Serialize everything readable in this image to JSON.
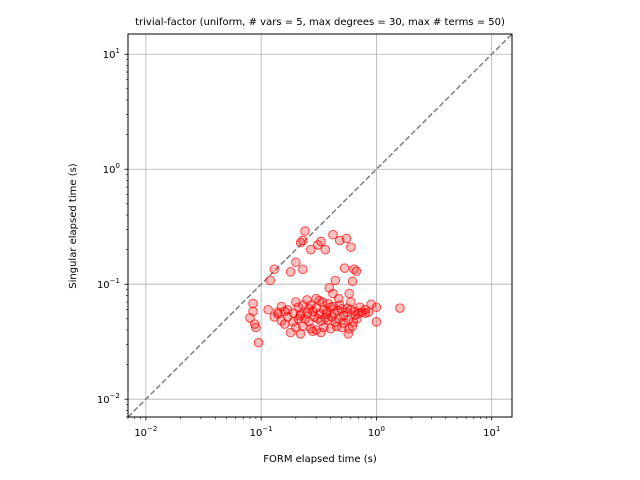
{
  "chart_data": {
    "type": "scatter",
    "title": "trivial-factor (uniform, # vars = 5, max degrees = 30, max # terms = 50)",
    "xlabel": "FORM elapsed time (s)",
    "ylabel": "Singular elapsed time (s)",
    "xscale": "log",
    "yscale": "log",
    "xlim": [
      0.007,
      15
    ],
    "ylim": [
      0.007,
      15
    ],
    "grid": true,
    "x_ticks": [
      {
        "value": 0.01,
        "base": "10",
        "exp": "−2"
      },
      {
        "value": 0.1,
        "base": "10",
        "exp": "−1"
      },
      {
        "value": 1,
        "base": "10",
        "exp": "0"
      },
      {
        "value": 10,
        "base": "10",
        "exp": "1"
      }
    ],
    "y_ticks": [
      {
        "value": 0.01,
        "base": "10",
        "exp": "−2"
      },
      {
        "value": 0.1,
        "base": "10",
        "exp": "−1"
      },
      {
        "value": 1,
        "base": "10",
        "exp": "0"
      },
      {
        "value": 10,
        "base": "10",
        "exp": "1"
      }
    ],
    "reference_line": {
      "style": "dashed",
      "color": "#7f7f7f",
      "relation": "y = x"
    },
    "marker": {
      "shape": "circle",
      "edgecolor": "#ff0000",
      "facecolor": "#ff0000",
      "face_alpha": 0.25
    },
    "points": [
      [
        0.24,
        0.29
      ],
      [
        0.23,
        0.24
      ],
      [
        0.31,
        0.22
      ],
      [
        0.36,
        0.2
      ],
      [
        0.42,
        0.27
      ],
      [
        0.55,
        0.25
      ],
      [
        0.6,
        0.21
      ],
      [
        0.22,
        0.23
      ],
      [
        0.33,
        0.235
      ],
      [
        0.27,
        0.2
      ],
      [
        0.48,
        0.24
      ],
      [
        0.13,
        0.135
      ],
      [
        0.2,
        0.155
      ],
      [
        0.23,
        0.135
      ],
      [
        0.18,
        0.128
      ],
      [
        0.12,
        0.108
      ],
      [
        0.53,
        0.138
      ],
      [
        0.64,
        0.135
      ],
      [
        0.67,
        0.13
      ],
      [
        0.44,
        0.108
      ],
      [
        0.62,
        0.106
      ],
      [
        0.39,
        0.093
      ],
      [
        0.42,
        0.083
      ],
      [
        0.47,
        0.075
      ],
      [
        0.6,
        0.07
      ],
      [
        0.3,
        0.075
      ],
      [
        0.25,
        0.073
      ],
      [
        0.2,
        0.07
      ],
      [
        0.58,
        0.083
      ],
      [
        0.38,
        0.068
      ],
      [
        0.085,
        0.068
      ],
      [
        0.085,
        0.058
      ],
      [
        0.08,
        0.051
      ],
      [
        0.088,
        0.045
      ],
      [
        0.09,
        0.042
      ],
      [
        0.095,
        0.031
      ],
      [
        0.115,
        0.06
      ],
      [
        0.14,
        0.057
      ],
      [
        0.15,
        0.064
      ],
      [
        0.17,
        0.06
      ],
      [
        0.19,
        0.056
      ],
      [
        0.21,
        0.063
      ],
      [
        0.23,
        0.066
      ],
      [
        0.26,
        0.061
      ],
      [
        0.28,
        0.058
      ],
      [
        0.3,
        0.062
      ],
      [
        0.32,
        0.055
      ],
      [
        0.35,
        0.06
      ],
      [
        0.37,
        0.058
      ],
      [
        0.4,
        0.063
      ],
      [
        0.43,
        0.056
      ],
      [
        0.46,
        0.059
      ],
      [
        0.5,
        0.061
      ],
      [
        0.55,
        0.057
      ],
      [
        0.6,
        0.06
      ],
      [
        0.65,
        0.058
      ],
      [
        0.7,
        0.056
      ],
      [
        0.75,
        0.057
      ],
      [
        0.8,
        0.06
      ],
      [
        0.85,
        0.057
      ],
      [
        0.9,
        0.067
      ],
      [
        1.0,
        0.063
      ],
      [
        1.6,
        0.062
      ],
      [
        0.13,
        0.052
      ],
      [
        0.15,
        0.048
      ],
      [
        0.17,
        0.052
      ],
      [
        0.19,
        0.047
      ],
      [
        0.21,
        0.05
      ],
      [
        0.22,
        0.053
      ],
      [
        0.24,
        0.05
      ],
      [
        0.26,
        0.047
      ],
      [
        0.29,
        0.052
      ],
      [
        0.31,
        0.05
      ],
      [
        0.33,
        0.048
      ],
      [
        0.36,
        0.051
      ],
      [
        0.38,
        0.049
      ],
      [
        0.41,
        0.052
      ],
      [
        0.44,
        0.047
      ],
      [
        0.47,
        0.05
      ],
      [
        0.52,
        0.046
      ],
      [
        0.57,
        0.049
      ],
      [
        0.63,
        0.047
      ],
      [
        0.68,
        0.05
      ],
      [
        0.16,
        0.045
      ],
      [
        0.2,
        0.042
      ],
      [
        0.23,
        0.043
      ],
      [
        0.27,
        0.041
      ],
      [
        0.3,
        0.04
      ],
      [
        0.35,
        0.042
      ],
      [
        0.4,
        0.041
      ],
      [
        0.45,
        0.043
      ],
      [
        0.5,
        0.042
      ],
      [
        0.58,
        0.041
      ],
      [
        0.62,
        0.043
      ],
      [
        1.0,
        0.047
      ],
      [
        0.18,
        0.038
      ],
      [
        0.22,
        0.037
      ],
      [
        0.28,
        0.039
      ],
      [
        0.33,
        0.038
      ],
      [
        0.57,
        0.037
      ],
      [
        0.14,
        0.055
      ],
      [
        0.16,
        0.058
      ],
      [
        0.25,
        0.056
      ],
      [
        0.27,
        0.066
      ],
      [
        0.34,
        0.07
      ],
      [
        0.42,
        0.064
      ],
      [
        0.48,
        0.066
      ],
      [
        0.56,
        0.062
      ],
      [
        0.72,
        0.063
      ],
      [
        0.32,
        0.072
      ],
      [
        0.22,
        0.055
      ],
      [
        0.37,
        0.055
      ],
      [
        0.52,
        0.053
      ],
      [
        0.66,
        0.054
      ],
      [
        0.8,
        0.056
      ]
    ]
  }
}
